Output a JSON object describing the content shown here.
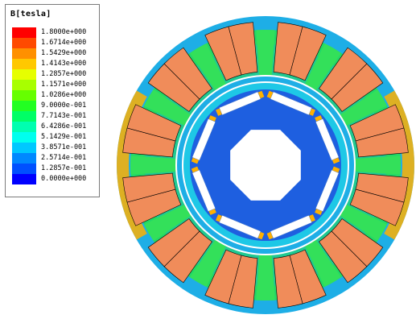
{
  "legend": {
    "title": "B[tesla]",
    "entries": [
      {
        "label": "1.8000e+000",
        "color": "#ff0000"
      },
      {
        "label": "1.6714e+000",
        "color": "#ff4a00"
      },
      {
        "label": "1.5429e+000",
        "color": "#ff9000"
      },
      {
        "label": "1.4143e+000",
        "color": "#ffc800"
      },
      {
        "label": "1.2857e+000",
        "color": "#e6ff00"
      },
      {
        "label": "1.1571e+000",
        "color": "#a8ff00"
      },
      {
        "label": "1.0286e+000",
        "color": "#66ff00"
      },
      {
        "label": "9.0000e-001",
        "color": "#22ff22"
      },
      {
        "label": "7.7143e-001",
        "color": "#00ff66"
      },
      {
        "label": "6.4286e-001",
        "color": "#00ffb0"
      },
      {
        "label": "5.1429e-001",
        "color": "#00ffee"
      },
      {
        "label": "3.8571e-001",
        "color": "#00c8ff"
      },
      {
        "label": "2.5714e-001",
        "color": "#0088ff"
      },
      {
        "label": "1.2857e-001",
        "color": "#0050ff"
      },
      {
        "label": "0.0000e+000",
        "color": "#0000ff"
      }
    ]
  },
  "colors": {
    "stator_yoke": "#22d866",
    "stator_outer_ring": "#1eaee6",
    "stator_tooth": "#33e05a",
    "coil": "#f08c5a",
    "coil_edge": "#000000",
    "rotor_core": "#1e5fe0",
    "rotor_edge": "#1ec8e6",
    "magnet_slot": "#ffffff",
    "high_flux": "#ffb000",
    "shaft": "#ffffff"
  }
}
